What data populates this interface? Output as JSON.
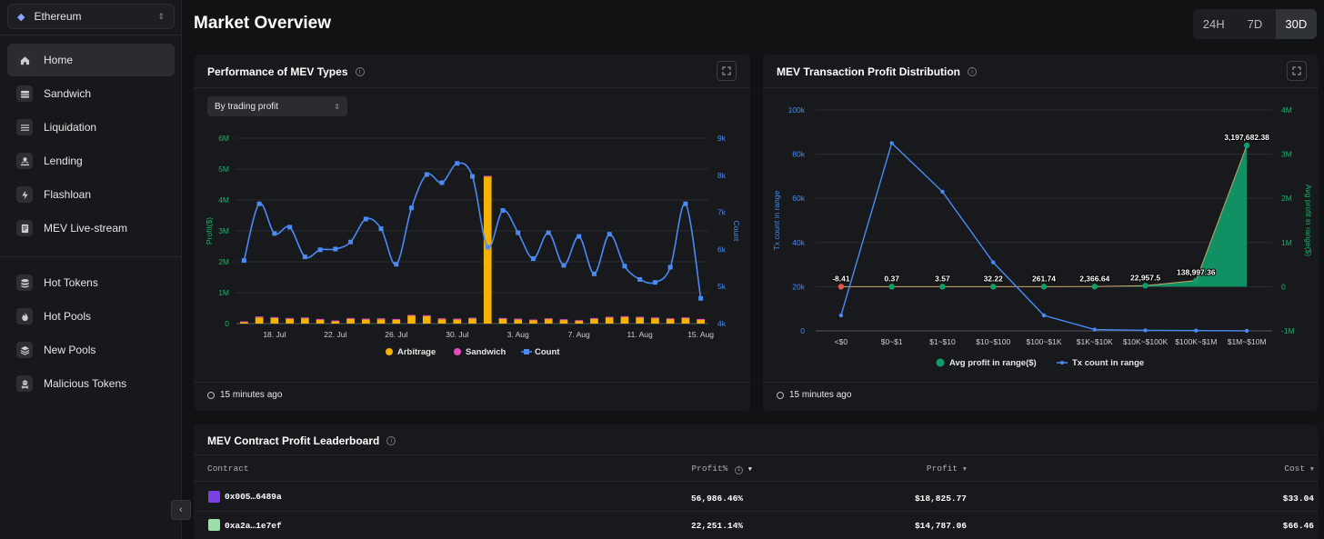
{
  "sidebar": {
    "chain": "Ethereum",
    "items": [
      {
        "label": "Home",
        "icon": "home-icon"
      },
      {
        "label": "Sandwich",
        "icon": "sandwich-icon"
      },
      {
        "label": "Liquidation",
        "icon": "liquidation-icon"
      },
      {
        "label": "Lending",
        "icon": "lending-icon"
      },
      {
        "label": "Flashloan",
        "icon": "flashloan-icon"
      },
      {
        "label": "MEV Live-stream",
        "icon": "livestream-icon"
      }
    ],
    "items2": [
      {
        "label": "Hot Tokens",
        "icon": "hot-tokens-icon"
      },
      {
        "label": "Hot Pools",
        "icon": "hot-pools-icon"
      },
      {
        "label": "New Pools",
        "icon": "new-pools-icon"
      },
      {
        "label": "Malicious Tokens",
        "icon": "malicious-tokens-icon"
      }
    ],
    "active": "Home"
  },
  "header": {
    "title": "Market Overview",
    "ranges": [
      "24H",
      "7D",
      "30D"
    ],
    "active_range": "30D"
  },
  "perf_card": {
    "title": "Performance of MEV Types",
    "dropdown": "By trading profit",
    "updated": "15 minutes ago"
  },
  "dist_card": {
    "title": "MEV Transaction Profit Distribution",
    "updated": "15 minutes ago"
  },
  "leaderboard": {
    "title": "MEV Contract Profit Leaderboard",
    "columns": [
      "Contract",
      "Profit%",
      "Profit",
      "Cost"
    ],
    "rows": [
      {
        "contract": "0x005…6489a",
        "profit_pct": "56,986.46%",
        "profit": "$18,825.77",
        "cost": "$33.04",
        "avatar_color": "#7b3fe4"
      },
      {
        "contract": "0xa2a…1e7ef",
        "profit_pct": "22,251.14%",
        "profit": "$14,787.06",
        "cost": "$66.46",
        "avatar_color": "#9be0a8"
      }
    ]
  },
  "colors": {
    "arbitrage": "#f5b301",
    "sandwich": "#e64bc0",
    "count": "#4a8af4",
    "avg_profit": "#0f9d6b",
    "profit_axis": "#17b26a"
  },
  "chart_data": [
    {
      "type": "bar",
      "title": "Performance of MEV Types",
      "ylabel": "Profit($)",
      "y2label": "Count",
      "ylim": [
        0,
        6000000
      ],
      "y2lim": [
        4000,
        9000
      ],
      "y_ticks": [
        "0",
        "1M",
        "2M",
        "3M",
        "4M",
        "5M",
        "6M"
      ],
      "y2_ticks": [
        "4k",
        "5k",
        "6k",
        "7k",
        "8k",
        "9k"
      ],
      "x_ticks": [
        "18. Jul",
        "22. Jul",
        "26. Jul",
        "30. Jul",
        "3. Aug",
        "7. Aug",
        "11. Aug",
        "15. Aug"
      ],
      "categories": [
        "16 Jul",
        "17 Jul",
        "18 Jul",
        "19 Jul",
        "20 Jul",
        "21 Jul",
        "22 Jul",
        "23 Jul",
        "24 Jul",
        "25 Jul",
        "26 Jul",
        "27 Jul",
        "28 Jul",
        "29 Jul",
        "30 Jul",
        "31 Jul",
        "1 Aug",
        "2 Aug",
        "3 Aug",
        "4 Aug",
        "5 Aug",
        "6 Aug",
        "7 Aug",
        "8 Aug",
        "9 Aug",
        "10 Aug",
        "11 Aug",
        "12 Aug",
        "13 Aug",
        "14 Aug",
        "15 Aug"
      ],
      "series": [
        {
          "name": "Arbitrage",
          "type": "bar",
          "values": [
            60000,
            200000,
            180000,
            150000,
            170000,
            120000,
            80000,
            150000,
            130000,
            140000,
            120000,
            250000,
            240000,
            140000,
            130000,
            160000,
            4750000,
            160000,
            130000,
            110000,
            150000,
            120000,
            90000,
            150000,
            190000,
            210000,
            190000,
            170000,
            150000,
            180000,
            130000
          ]
        },
        {
          "name": "Sandwich",
          "type": "bar",
          "values": [
            10000,
            30000,
            30000,
            30000,
            30000,
            30000,
            20000,
            30000,
            30000,
            30000,
            30000,
            30000,
            30000,
            30000,
            30000,
            30000,
            30000,
            20000,
            30000,
            20000,
            20000,
            20000,
            20000,
            30000,
            30000,
            30000,
            30000,
            30000,
            20000,
            20000,
            20000
          ]
        },
        {
          "name": "Count",
          "type": "line",
          "axis": "y2",
          "values": [
            5700,
            7230,
            6430,
            6600,
            5800,
            5990,
            6010,
            6200,
            6820,
            6560,
            5600,
            7120,
            8020,
            7800,
            8320,
            7970,
            6060,
            7050,
            6450,
            5750,
            6450,
            5570,
            6350,
            5340,
            6410,
            5550,
            5190,
            5110,
            5520,
            7230,
            4680
          ]
        }
      ]
    },
    {
      "type": "line",
      "title": "MEV Transaction Profit Distribution",
      "ylabel": "Tx count in range",
      "y2label": "Avg profit in range($)",
      "ylim": [
        0,
        100000
      ],
      "y2lim": [
        -1000000,
        4000000
      ],
      "y_ticks": [
        "0",
        "20k",
        "40k",
        "60k",
        "80k",
        "100k"
      ],
      "y2_ticks": [
        "-1M",
        "0",
        "1M",
        "2M",
        "3M",
        "4M"
      ],
      "categories": [
        "<$0",
        "$0~$1",
        "$1~$10",
        "$10~$100",
        "$100~$1K",
        "$1K~$10K",
        "$10K~$100K",
        "$100K~$1M",
        "$1M~$10M"
      ],
      "series": [
        {
          "name": "Avg profit in range($)",
          "type": "area",
          "axis": "y2",
          "values": [
            -8.41,
            0.37,
            3.57,
            32.22,
            261.74,
            2366.64,
            22957.5,
            138997.36,
            3197682.38
          ],
          "labels": [
            "-8.41",
            "0.37",
            "3.57",
            "32.22",
            "261.74",
            "2,366.64",
            "22,957.5",
            "138,997.36",
            "3,197,682.38"
          ]
        },
        {
          "name": "Tx count in range",
          "type": "line",
          "axis": "y",
          "values": [
            7000,
            85000,
            63000,
            31000,
            7000,
            600,
            250,
            120,
            40
          ]
        }
      ]
    }
  ]
}
